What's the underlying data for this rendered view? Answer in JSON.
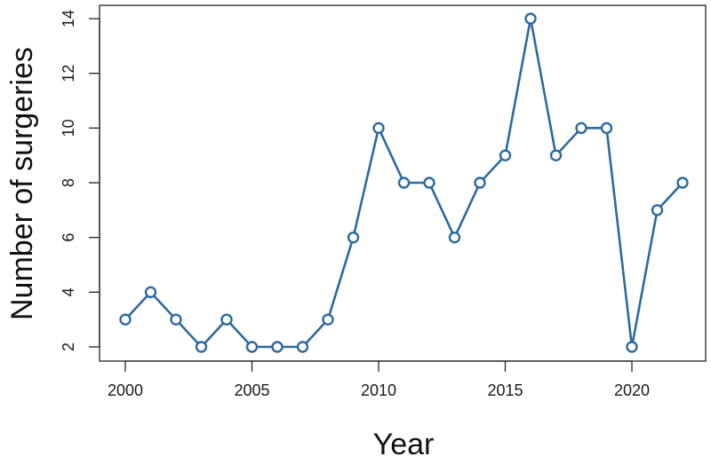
{
  "chart_data": {
    "type": "line",
    "title": "",
    "xlabel": "Year",
    "ylabel": "Number of surgeries",
    "x": [
      2000,
      2001,
      2002,
      2003,
      2004,
      2005,
      2006,
      2007,
      2008,
      2009,
      2010,
      2011,
      2012,
      2013,
      2014,
      2015,
      2016,
      2017,
      2018,
      2019,
      2020,
      2021,
      2022
    ],
    "series": [
      {
        "values": [
          3,
          4,
          3,
          2,
          3,
          2,
          2,
          2,
          3,
          6,
          10,
          8,
          8,
          6,
          8,
          9,
          14,
          9,
          10,
          10,
          2,
          7,
          8
        ],
        "color": "#2e6a9e",
        "marker": "open-circle"
      }
    ],
    "xlim": [
      2000,
      2022
    ],
    "ylim": [
      2,
      14
    ],
    "xticks": [
      "2000",
      "2005",
      "2010",
      "2015",
      "2020"
    ],
    "yticks": [
      "2",
      "4",
      "6",
      "8",
      "10",
      "12",
      "14"
    ],
    "grid": false,
    "legend": "none"
  }
}
